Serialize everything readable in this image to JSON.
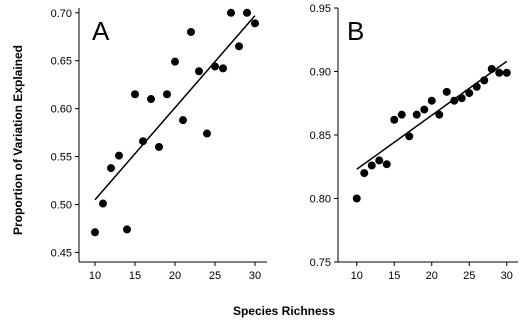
{
  "figure": {
    "xlabel": "Species Richness",
    "ylabel": "Proportion of Variation Explained"
  },
  "chart_data": [
    {
      "type": "scatter",
      "panel": "A",
      "xlabel": "Species Richness",
      "ylabel": "Proportion of Variation Explained",
      "xlim": [
        8,
        31.5
      ],
      "ylim": [
        0.44,
        0.705
      ],
      "xticks": [
        "10",
        "15",
        "20",
        "25",
        "30"
      ],
      "yticks": [
        "0.45",
        "0.50",
        "0.55",
        "0.60",
        "0.65",
        "0.70"
      ],
      "x": [
        10,
        11,
        12,
        13,
        14,
        15,
        16,
        17,
        18,
        19,
        20,
        21,
        22,
        23,
        24,
        25,
        26,
        27,
        28,
        29,
        30
      ],
      "y": [
        0.471,
        0.501,
        0.538,
        0.551,
        0.474,
        0.615,
        0.566,
        0.61,
        0.56,
        0.615,
        0.649,
        0.588,
        0.68,
        0.639,
        0.574,
        0.644,
        0.642,
        0.7,
        0.665,
        0.7,
        0.689
      ],
      "trendline": {
        "x": [
          10,
          30
        ],
        "y": [
          0.505,
          0.697
        ]
      }
    },
    {
      "type": "scatter",
      "panel": "B",
      "xlabel": "Species Richness",
      "ylim": [
        0.75,
        0.95
      ],
      "xlim": [
        7.5,
        31.5
      ],
      "xticks": [
        "10",
        "15",
        "20",
        "25",
        "30"
      ],
      "yticks": [
        "0.75",
        "0.80",
        "0.85",
        "0.90",
        "0.95"
      ],
      "x": [
        10,
        11,
        12,
        13,
        14,
        15,
        16,
        17,
        18,
        19,
        20,
        21,
        22,
        23,
        24,
        25,
        26,
        27,
        28,
        29,
        30
      ],
      "y": [
        0.8,
        0.82,
        0.826,
        0.83,
        0.827,
        0.862,
        0.866,
        0.849,
        0.866,
        0.87,
        0.877,
        0.866,
        0.884,
        0.877,
        0.879,
        0.883,
        0.888,
        0.893,
        0.902,
        0.899,
        0.899
      ],
      "trendline": {
        "x": [
          10,
          30
        ],
        "y": [
          0.823,
          0.908
        ]
      }
    }
  ]
}
